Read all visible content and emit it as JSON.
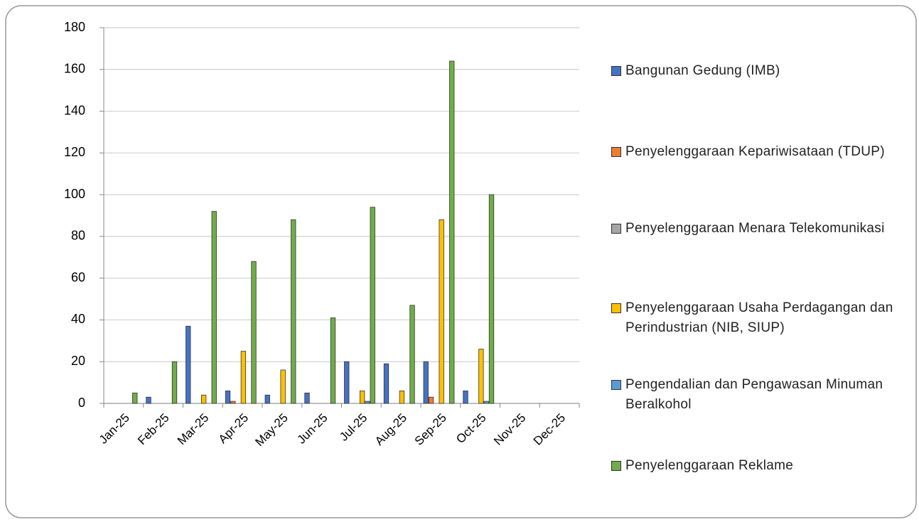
{
  "chart_data": {
    "type": "bar",
    "categories": [
      "Jan-25",
      "Feb-25",
      "Mar-25",
      "Apr-25",
      "May-25",
      "Jun-25",
      "Jul-25",
      "Aug-25",
      "Sep-25",
      "Oct-25",
      "Nov-25",
      "Dec-25"
    ],
    "series": [
      {
        "name": "Bangunan Gedung (IMB)",
        "color": "#4472c4",
        "values": [
          0,
          3,
          37,
          6,
          4,
          5,
          20,
          19,
          20,
          6,
          0,
          0
        ]
      },
      {
        "name": "Penyelenggaraan Kepariwisataan (TDUP)",
        "color": "#ed7d31",
        "values": [
          0,
          0,
          0,
          1,
          0,
          0,
          0,
          0,
          3,
          0,
          0,
          0
        ]
      },
      {
        "name": "Penyelenggaraan Menara Telekomunikasi",
        "color": "#a5a5a5",
        "values": [
          0,
          0,
          0,
          0,
          0,
          0,
          0,
          0,
          0,
          0,
          0,
          0
        ]
      },
      {
        "name": "Penyelenggaraan Usaha Perdagangan dan Perindustrian (NIB, SIUP)",
        "color": "#ffc000",
        "values": [
          0,
          0,
          4,
          25,
          16,
          0,
          6,
          6,
          88,
          26,
          0,
          0
        ]
      },
      {
        "name": "Pengendalian dan Pengawasan Minuman Beralkohol",
        "color": "#5b9bd5",
        "values": [
          0,
          0,
          0,
          0,
          0,
          0,
          1,
          0,
          0,
          1,
          0,
          0
        ]
      },
      {
        "name": "Penyelenggaraan Reklame",
        "color": "#70ad47",
        "values": [
          5,
          20,
          92,
          68,
          88,
          41,
          94,
          47,
          164,
          100,
          0,
          0
        ]
      }
    ],
    "ylim": [
      0,
      180
    ],
    "yticks": [
      0,
      20,
      40,
      60,
      80,
      100,
      120,
      140,
      160,
      180
    ],
    "grid": true,
    "legend": "right"
  }
}
